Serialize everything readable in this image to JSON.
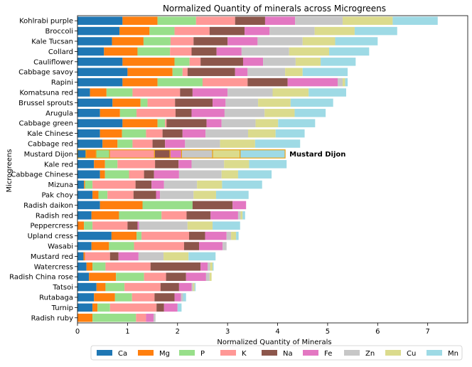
{
  "chart_data": {
    "type": "bar",
    "orientation": "horizontal",
    "stacked": true,
    "title": "Normalized Quantity of minerals  across Microgreens",
    "xlabel": "Normalized Quantity of Minerals",
    "ylabel": "Microgreens",
    "xlim": [
      0,
      7.8
    ],
    "xticks": [
      0,
      1,
      2,
      3,
      4,
      5,
      6,
      7
    ],
    "grid": false,
    "legend_position": "bottom",
    "highlight": "Mustard Dijon",
    "categories": [
      "Kohlrabi purple",
      "Broccoli",
      "Kale Tucsan",
      "Collard",
      "Cauliflower",
      "Cabbage savoy",
      "Rapini",
      "Komatsuna red",
      "Brussel sprouts",
      "Arugula",
      "Cabbage green",
      "Kale Chinese",
      "Cabbage red",
      "Mustard Dijon",
      "Kale red",
      "Cabbage Chinese",
      "Mizuna",
      "Pak choy",
      "Radish daikon",
      "Radish red",
      "Peppercress",
      "Upland cress",
      "Wasabi",
      "Mustard red",
      "Watercress",
      "Radish China rose",
      "Tatsoi",
      "Rutabaga",
      "Turnip",
      "Radish ruby"
    ],
    "series": [
      {
        "name": "Ca",
        "color": "#1f77b4",
        "values": [
          0.9,
          0.84,
          0.69,
          0.53,
          0.9,
          1.0,
          0.9,
          0.25,
          0.7,
          0.45,
          0.9,
          0.45,
          0.5,
          0.17,
          0.33,
          0.45,
          0.13,
          0.3,
          0.45,
          0.28,
          0.0,
          0.68,
          0.28,
          0.12,
          0.18,
          0.23,
          0.38,
          0.33,
          0.3,
          0.0
        ]
      },
      {
        "name": "Mg",
        "color": "#ff7f0e",
        "values": [
          0.7,
          0.6,
          0.63,
          0.67,
          1.04,
          0.9,
          0.7,
          0.33,
          0.56,
          0.4,
          0.7,
          0.44,
          0.3,
          0.2,
          0.22,
          0.1,
          0.02,
          0.12,
          0.85,
          0.55,
          0.13,
          0.5,
          0.35,
          0.03,
          0.12,
          0.54,
          0.18,
          0.42,
          0.1,
          0.3
        ]
      },
      {
        "name": "P",
        "color": "#98df8a",
        "values": [
          0.77,
          0.5,
          0.54,
          0.65,
          0.3,
          0.2,
          0.9,
          0.52,
          0.14,
          0.33,
          0.15,
          0.48,
          0.3,
          0.27,
          0.25,
          0.48,
          0.15,
          0.18,
          1.0,
          0.85,
          0.17,
          0.1,
          0.5,
          0.0,
          0.26,
          0.56,
          0.38,
          0.34,
          0.25,
          0.87
        ]
      },
      {
        "name": "K",
        "color": "#ff9896",
        "values": [
          0.78,
          0.7,
          0.46,
          0.43,
          0.22,
          0.1,
          0.9,
          0.95,
          0.55,
          0.78,
          0.03,
          0.33,
          0.4,
          0.9,
          0.75,
          0.3,
          0.86,
          0.52,
          0.0,
          0.5,
          0.7,
          0.95,
          1.0,
          0.5,
          0.9,
          0.44,
          0.72,
          0.45,
          0.93,
          0.2
        ]
      },
      {
        "name": "Na",
        "color": "#8c564b",
        "values": [
          0.6,
          0.7,
          0.68,
          0.5,
          0.85,
          0.95,
          0.8,
          0.25,
          0.75,
          0.32,
          0.8,
          0.4,
          0.25,
          0.31,
          0.47,
          0.2,
          0.32,
          0.45,
          0.8,
          0.48,
          0.2,
          0.32,
          0.3,
          0.17,
          1.0,
          0.4,
          0.37,
          0.4,
          0.15,
          0.0
        ]
      },
      {
        "name": "Fe",
        "color": "#e377c2",
        "values": [
          0.6,
          0.5,
          0.6,
          0.5,
          0.4,
          0.25,
          1.0,
          0.7,
          0.26,
          0.66,
          0.3,
          0.46,
          0.4,
          0.23,
          0.26,
          0.5,
          0.25,
          0.08,
          0.27,
          0.55,
          0.03,
          0.43,
          0.47,
          0.4,
          0.14,
          0.4,
          0.25,
          0.13,
          0.27,
          0.15
        ]
      },
      {
        "name": "Zn",
        "color": "#c7c7c7",
        "values": [
          0.95,
          0.9,
          0.9,
          0.95,
          0.65,
          0.75,
          0.1,
          0.9,
          0.65,
          0.8,
          0.68,
          0.85,
          0.7,
          0.62,
          0.65,
          0.85,
          0.66,
          0.67,
          0.0,
          0.05,
          0.97,
          0.09,
          0.08,
          0.5,
          0.05,
          0.07,
          0.03,
          0.04,
          0.0,
          0.04
        ]
      },
      {
        "name": "Cu",
        "color": "#dbdb8d",
        "values": [
          1.0,
          0.8,
          0.65,
          0.8,
          0.5,
          0.35,
          0.05,
          0.72,
          0.65,
          0.6,
          0.45,
          0.55,
          0.7,
          0.55,
          0.5,
          0.33,
          0.5,
          0.45,
          0.0,
          0.04,
          0.5,
          0.1,
          0.0,
          0.5,
          0.05,
          0.04,
          0.03,
          0.0,
          0.0,
          0.0
        ]
      },
      {
        "name": "Mn",
        "color": "#9edae5",
        "values": [
          0.9,
          0.85,
          0.85,
          0.8,
          0.7,
          0.9,
          0.05,
          0.75,
          0.85,
          0.62,
          0.74,
          0.58,
          0.9,
          0.9,
          0.75,
          0.67,
          0.8,
          0.65,
          0.0,
          0.05,
          0.55,
          0.05,
          0.0,
          0.54,
          0.02,
          0.0,
          0.02,
          0.06,
          0.08,
          0.0
        ]
      }
    ]
  }
}
